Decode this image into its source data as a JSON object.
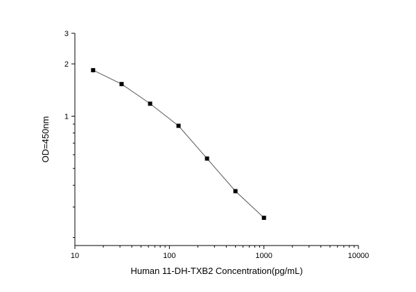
{
  "chart_data": {
    "type": "line",
    "title": "",
    "xlabel": "Human 11-DH-TXB2 Concentration(pg/mL)",
    "ylabel": "OD=450nm",
    "xscale": "log",
    "yscale": "log",
    "xlim": [
      10,
      10000
    ],
    "ylim": [
      0.18,
      3
    ],
    "xticks": [
      10,
      100,
      1000,
      10000
    ],
    "xtick_labels": [
      "10",
      "100",
      "1000",
      "10000"
    ],
    "yticks": [
      1,
      2,
      3
    ],
    "ytick_labels": [
      "1",
      "2",
      "3"
    ],
    "grid": false,
    "legend": "none",
    "series": [
      {
        "x": [
          15.6,
          31.2,
          62.5,
          125,
          250,
          500,
          1000
        ],
        "y": [
          1.84,
          1.53,
          1.18,
          0.88,
          0.57,
          0.37,
          0.26
        ]
      }
    ],
    "colors": {
      "line": "#555555",
      "marker": "#000000",
      "axis": "#000000"
    }
  }
}
